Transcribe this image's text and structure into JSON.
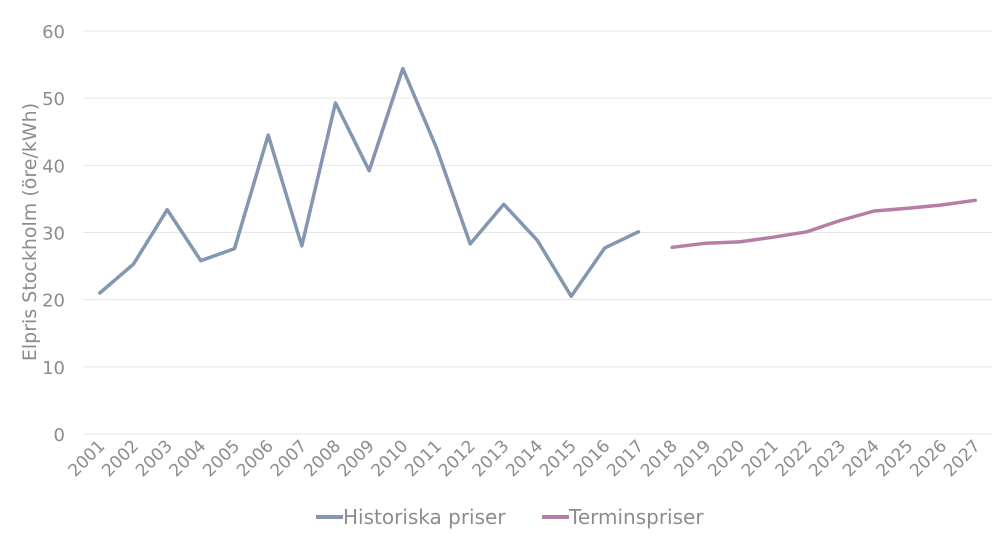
{
  "chart_data": {
    "type": "line",
    "title": "",
    "xlabel": "",
    "ylabel": "Elpris Stockholm (öre/kWh)",
    "ylim": [
      0,
      60
    ],
    "yticks": [
      0,
      10,
      20,
      30,
      40,
      50,
      60
    ],
    "grid": true,
    "legend_position": "bottom",
    "categories": [
      "2001",
      "2002",
      "2003",
      "2004",
      "2005",
      "2006",
      "2007",
      "2008",
      "2009",
      "2010",
      "2011",
      "2012",
      "2013",
      "2014",
      "2015",
      "2016",
      "2017",
      "2018",
      "2019",
      "2020",
      "2021",
      "2022",
      "2023",
      "2024",
      "2025",
      "2026",
      "2027"
    ],
    "series": [
      {
        "name": "Historiska priser",
        "color": "#8496b0",
        "values": [
          21.0,
          25.3,
          33.4,
          25.8,
          27.6,
          44.5,
          28.0,
          49.3,
          39.2,
          54.4,
          42.6,
          28.3,
          34.2,
          28.8,
          20.5,
          27.7,
          30.1,
          null,
          null,
          null,
          null,
          null,
          null,
          null,
          null,
          null,
          null
        ]
      },
      {
        "name": "Terminspriser",
        "color": "#b67ea7",
        "values": [
          null,
          null,
          null,
          null,
          null,
          null,
          null,
          null,
          null,
          null,
          null,
          null,
          null,
          null,
          null,
          null,
          null,
          27.8,
          28.4,
          28.6,
          29.3,
          30.1,
          31.8,
          33.2,
          33.6,
          34.1,
          34.8
        ]
      }
    ]
  }
}
